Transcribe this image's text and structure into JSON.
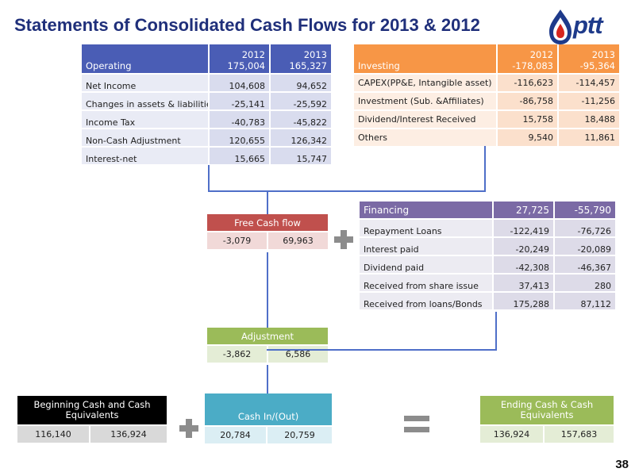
{
  "title": "Statements of Consolidated Cash Flows for 2013 & 2012",
  "logo": {
    "text": "ptt",
    "icon": "ptt-flame-logo-icon"
  },
  "page_number": "38",
  "operating": {
    "label": "Operating",
    "col1": {
      "year": "2012",
      "total": "175,004"
    },
    "col2": {
      "year": "2013",
      "total": "165,327"
    },
    "rows": [
      {
        "label": "Net Income",
        "v2012": "104,608",
        "v2013": "94,652"
      },
      {
        "label": "Changes in assets & liabilities",
        "v2012": "-25,141",
        "v2013": "-25,592"
      },
      {
        "label": "Income Tax",
        "v2012": "-40,783",
        "v2013": "-45,822"
      },
      {
        "label": "Non-Cash  Adjustment",
        "v2012": "120,655",
        "v2013": "126,342"
      },
      {
        "label": "Interest-net",
        "v2012": "15,665",
        "v2013": "15,747"
      }
    ]
  },
  "investing": {
    "label": "Investing",
    "col1": {
      "year": "2012",
      "total": "-178,083"
    },
    "col2": {
      "year": "2013",
      "total": "-95,364"
    },
    "rows": [
      {
        "label": "CAPEX(PP&E, Intangible asset)",
        "v2012": "-116,623",
        "v2013": "-114,457"
      },
      {
        "label": "Investment (Sub. &Affiliates)",
        "v2012": "-86,758",
        "v2013": "-11,256"
      },
      {
        "label": "Dividend/Interest Received",
        "v2012": "15,758",
        "v2013": "18,488"
      },
      {
        "label": "Others",
        "v2012": "9,540",
        "v2013": "11,861"
      }
    ]
  },
  "financing": {
    "label": "Financing",
    "total2012": "27,725",
    "total2013": "-55,790",
    "rows": [
      {
        "label": "Repayment  Loans",
        "v2012": "-122,419",
        "v2013": "-76,726"
      },
      {
        "label": "Interest paid",
        "v2012": "-20,249",
        "v2013": "-20,089"
      },
      {
        "label": "Dividend paid",
        "v2012": "-42,308",
        "v2013": "-46,367"
      },
      {
        "label": "Received from share issue",
        "v2012": "37,413",
        "v2013": "280"
      },
      {
        "label": "Received from loans/Bonds",
        "v2012": "175,288",
        "v2013": "87,112"
      }
    ]
  },
  "free_cash_flow": {
    "label": "Free Cash flow",
    "v2012": "-3,079",
    "v2013": "69,963"
  },
  "adjustment": {
    "label": "Adjustment",
    "v2012": "-3,862",
    "v2013": "6,586"
  },
  "beginning_cash": {
    "label": "Beginning Cash and Cash Equivalents",
    "v2012": "116,140",
    "v2013": "136,924"
  },
  "cash_in_out": {
    "label": "Cash In/(Out)",
    "v2012": "20,784",
    "v2013": "20,759"
  },
  "ending_cash": {
    "label": "Ending Cash & Cash Equivalents",
    "v2012": "136,924",
    "v2013": "157,683"
  },
  "colors": {
    "title": "#1f2f7a",
    "operating": "#4a5db5",
    "investing": "#f79646",
    "financing": "#7b6aa5",
    "free_cash_flow": "#c0504d",
    "adjustment": "#9bbb59",
    "beginning_cash": "#000000",
    "cash_in_out": "#4bacc6",
    "ending_cash": "#9bbb59",
    "connector": "#4f6fc8"
  }
}
